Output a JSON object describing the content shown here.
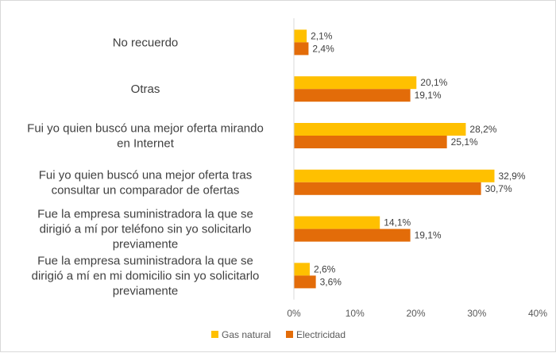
{
  "chart_data": {
    "type": "bar",
    "orientation": "horizontal",
    "categories": [
      [
        "No recuerdo"
      ],
      [
        "Otras"
      ],
      [
        "Fui yo quien buscó una mejor oferta mirando",
        "en Internet"
      ],
      [
        "Fui yo quien buscó una mejor oferta tras",
        "consultar un comparador de ofertas"
      ],
      [
        "Fue la empresa suministradora la que se",
        "dirigió a mí por teléfono sin yo solicitarlo",
        "previamente"
      ],
      [
        "Fue la empresa suministradora la que se",
        "dirigió a mí en mi domicilio sin yo solicitarlo",
        "previamente"
      ]
    ],
    "series": [
      {
        "name": "Gas natural",
        "color": "#FFC000",
        "values": [
          2.1,
          20.1,
          28.2,
          32.9,
          14.1,
          2.6
        ],
        "labels": [
          "2,1%",
          "20,1%",
          "28,2%",
          "32,9%",
          "14,1%",
          "2,6%"
        ]
      },
      {
        "name": "Electricidad",
        "color": "#E36C09",
        "values": [
          2.4,
          19.1,
          25.1,
          30.7,
          19.1,
          3.6
        ],
        "labels": [
          "2,4%",
          "19,1%",
          "25,1%",
          "30,7%",
          "19,1%",
          "3,6%"
        ]
      }
    ],
    "xlim": [
      0,
      40
    ],
    "xticks": [
      0,
      10,
      20,
      30,
      40
    ],
    "xtick_labels": [
      "0%",
      "10%",
      "20%",
      "30%",
      "40%"
    ],
    "grid": false,
    "legend_position": "bottom"
  }
}
